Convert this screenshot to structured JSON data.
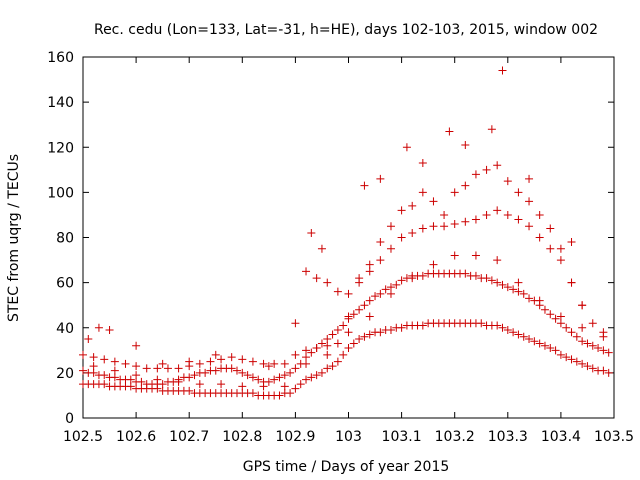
{
  "chart_data": {
    "type": "scatter",
    "title": "Rec. cedu (Lon=133, Lat=-31, h=HE), days 102-103, 2015, window 002",
    "xlabel": "GPS time / Days of year 2015",
    "ylabel": "STEC from uqrg / TECUs",
    "xlim": [
      102.5,
      103.5
    ],
    "ylim": [
      0,
      160
    ],
    "xticks": [
      "102.5",
      "102.6",
      "102.7",
      "102.8",
      "102.9",
      "103",
      "103.1",
      "103.2",
      "103.3",
      "103.4",
      "103.5"
    ],
    "yticks": [
      "0",
      "20",
      "40",
      "60",
      "80",
      "100",
      "120",
      "140",
      "160"
    ],
    "grid": false,
    "marker": "+",
    "color": "#cc0000",
    "series": [
      {
        "x": [
          102.5,
          102.51,
          102.52,
          102.53,
          102.54,
          102.55,
          102.56,
          102.57,
          102.58,
          102.59,
          102.6,
          102.61,
          102.62,
          102.63,
          102.64,
          102.65,
          102.66,
          102.67,
          102.68,
          102.69,
          102.7,
          102.71,
          102.72,
          102.73,
          102.74,
          102.75,
          102.76,
          102.77,
          102.78,
          102.79,
          102.8,
          102.81,
          102.82,
          102.83,
          102.84,
          102.85,
          102.86,
          102.87,
          102.88,
          102.89,
          102.9,
          102.91,
          102.92,
          102.93,
          102.94,
          102.95,
          102.96,
          102.97,
          102.98,
          102.99,
          103.0,
          103.01,
          103.02,
          103.03,
          103.04,
          103.05,
          103.06,
          103.07,
          103.08,
          103.09,
          103.1,
          103.11,
          103.12,
          103.13,
          103.14,
          103.15,
          103.16,
          103.17,
          103.18,
          103.19,
          103.2,
          103.21,
          103.22,
          103.23,
          103.24,
          103.25,
          103.26,
          103.27,
          103.28,
          103.29,
          103.3,
          103.31,
          103.32,
          103.33,
          103.34,
          103.35,
          103.36,
          103.37,
          103.38,
          103.39,
          103.4,
          103.41,
          103.42,
          103.43,
          103.44,
          103.45,
          103.46,
          103.47,
          103.48,
          103.49
        ],
        "y": [
          15,
          15,
          15,
          15,
          15,
          14,
          14,
          14,
          14,
          14,
          13,
          13,
          13,
          13,
          13,
          12,
          12,
          12,
          12,
          12,
          12,
          11,
          11,
          11,
          11,
          11,
          11,
          11,
          11,
          11,
          11,
          11,
          11,
          10,
          10,
          10,
          10,
          10,
          11,
          11,
          13,
          15,
          17,
          18,
          19,
          20,
          22,
          23,
          25,
          28,
          31,
          33,
          35,
          36,
          37,
          38,
          38,
          39,
          39,
          40,
          40,
          41,
          41,
          41,
          41,
          42,
          42,
          42,
          42,
          42,
          42,
          42,
          42,
          42,
          42,
          42,
          41,
          41,
          41,
          40,
          39,
          38,
          37,
          36,
          35,
          34,
          33,
          32,
          31,
          30,
          28,
          27,
          26,
          25,
          24,
          23,
          22,
          21,
          21,
          20
        ]
      },
      {
        "x": [
          102.5,
          102.51,
          102.52,
          102.53,
          102.54,
          102.55,
          102.56,
          102.57,
          102.58,
          102.59,
          102.6,
          102.61,
          102.62,
          102.63,
          102.64,
          102.65,
          102.66,
          102.67,
          102.68,
          102.69,
          102.7,
          102.71,
          102.72,
          102.73,
          102.74,
          102.75,
          102.76,
          102.77,
          102.78,
          102.79,
          102.8,
          102.81,
          102.82,
          102.83,
          102.84,
          102.85,
          102.86,
          102.87,
          102.88,
          102.89,
          102.9,
          102.91,
          102.92,
          102.93,
          102.94,
          102.95,
          102.96,
          102.97,
          102.98,
          102.99,
          103.0,
          103.01,
          103.02,
          103.03,
          103.04,
          103.05,
          103.06,
          103.07,
          103.08,
          103.09,
          103.1,
          103.11,
          103.12,
          103.13,
          103.14,
          103.15,
          103.16,
          103.17,
          103.18,
          103.19,
          103.2,
          103.21,
          103.22,
          103.23,
          103.24,
          103.25,
          103.26,
          103.27,
          103.28,
          103.29,
          103.3,
          103.31,
          103.32,
          103.33,
          103.34,
          103.35,
          103.36,
          103.37,
          103.38,
          103.39,
          103.4,
          103.41,
          103.42,
          103.43,
          103.44,
          103.45,
          103.46,
          103.47,
          103.48,
          103.49
        ],
        "y": [
          21,
          20,
          20,
          19,
          19,
          18,
          18,
          17,
          17,
          17,
          16,
          16,
          15,
          15,
          15,
          15,
          16,
          16,
          17,
          18,
          18,
          19,
          20,
          20,
          21,
          21,
          22,
          22,
          22,
          21,
          20,
          19,
          18,
          17,
          16,
          16,
          17,
          18,
          19,
          20,
          22,
          24,
          27,
          29,
          31,
          33,
          35,
          37,
          39,
          41,
          44,
          46,
          48,
          50,
          52,
          54,
          55,
          57,
          58,
          59,
          61,
          62,
          62,
          63,
          63,
          64,
          64,
          64,
          64,
          64,
          64,
          64,
          64,
          63,
          63,
          62,
          62,
          61,
          60,
          59,
          58,
          57,
          56,
          55,
          53,
          52,
          50,
          48,
          46,
          44,
          42,
          40,
          38,
          36,
          34,
          33,
          32,
          31,
          30,
          29
        ]
      },
      {
        "x": [
          102.5,
          102.52,
          102.54,
          102.56,
          102.58,
          102.6,
          102.62,
          102.64,
          102.66,
          102.68,
          102.7,
          102.72,
          102.74,
          102.76,
          102.78,
          102.8,
          102.82,
          102.84,
          102.86,
          102.88,
          102.9,
          102.92,
          102.94,
          102.96,
          102.98,
          103.0,
          103.02,
          103.04,
          103.06,
          103.08,
          103.1,
          103.12,
          103.14,
          103.16,
          103.18,
          103.2,
          103.22,
          103.24,
          103.26,
          103.28,
          103.3,
          103.32,
          103.34,
          103.36,
          103.38,
          103.4,
          103.42,
          103.44,
          103.46,
          103.48
        ],
        "y": [
          28,
          27,
          26,
          25,
          24,
          23,
          22,
          22,
          22,
          22,
          23,
          24,
          25,
          26,
          27,
          26,
          25,
          24,
          24,
          24,
          42,
          65,
          62,
          60,
          56,
          55,
          60,
          65,
          70,
          75,
          80,
          82,
          84,
          85,
          85,
          86,
          87,
          88,
          90,
          92,
          90,
          88,
          85,
          80,
          75,
          70,
          60,
          50,
          42,
          38
        ]
      },
      {
        "x": [
          102.9,
          102.92,
          102.94,
          102.96,
          102.98,
          103.0,
          103.02,
          103.04,
          103.06,
          103.08,
          103.1,
          103.12,
          103.14,
          103.16,
          103.18,
          103.2,
          103.22,
          103.24,
          103.26,
          103.28,
          103.3,
          103.32,
          103.34,
          103.36,
          103.38,
          103.4,
          103.42,
          103.44
        ],
        "y": [
          28,
          30,
          31,
          32,
          33,
          45,
          62,
          68,
          78,
          85,
          92,
          94,
          100,
          96,
          90,
          100,
          103,
          108,
          110,
          112,
          105,
          100,
          96,
          90,
          84,
          75,
          60,
          50
        ]
      },
      {
        "x": [
          102.51,
          102.53,
          102.55,
          102.6,
          102.65,
          102.7,
          102.75,
          102.85,
          102.93,
          102.95,
          103.03,
          103.06,
          103.11,
          103.14,
          103.19,
          103.22,
          103.27,
          103.29,
          103.34,
          103.42
        ],
        "y": [
          35,
          40,
          39,
          32,
          24,
          25,
          28,
          23,
          82,
          75,
          103,
          106,
          120,
          113,
          127,
          121,
          128,
          154,
          106,
          78
        ]
      },
      {
        "x": [
          102.52,
          102.56,
          102.6,
          102.64,
          102.68,
          102.72,
          102.76,
          102.8,
          102.84,
          102.88,
          102.92,
          102.96,
          103.0,
          103.04,
          103.08,
          103.12,
          103.16,
          103.2,
          103.24,
          103.28,
          103.32,
          103.36,
          103.4,
          103.44,
          103.48
        ],
        "y": [
          23,
          21,
          19,
          17,
          16,
          15,
          15,
          14,
          14,
          14,
          24,
          28,
          38,
          45,
          55,
          63,
          68,
          72,
          72,
          70,
          60,
          52,
          45,
          40,
          36
        ]
      }
    ]
  }
}
